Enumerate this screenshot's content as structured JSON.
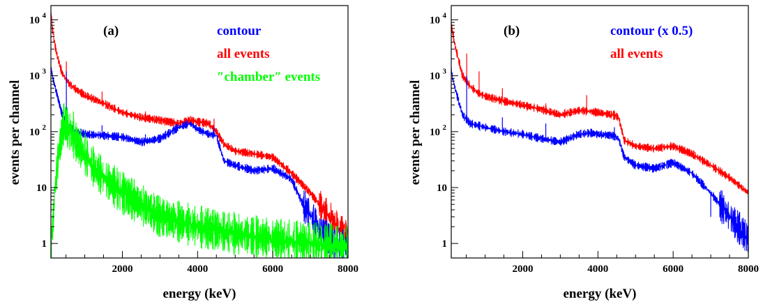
{
  "chart_data": [
    {
      "type": "line",
      "panel_label": "(a)",
      "xlabel": "energy (keV)",
      "ylabel": "events per channel",
      "xlim": [
        100,
        8000
      ],
      "ylim": [
        0.55,
        18000
      ],
      "yscale": "log",
      "x_ticks": [
        2000,
        4000,
        6000,
        8000
      ],
      "x_tick_labels": [
        "2000",
        "4000",
        "6000",
        "8000"
      ],
      "y_ticks": [
        1,
        10,
        100,
        1000,
        10000
      ],
      "y_tick_labels": [
        {
          "base": "1",
          "exp": ""
        },
        {
          "base": "10",
          "exp": ""
        },
        {
          "base": "10",
          "exp": "2"
        },
        {
          "base": "10",
          "exp": "3"
        },
        {
          "base": "10",
          "exp": "4"
        }
      ],
      "legend_placement": "top-right",
      "series": [
        {
          "name": "all events",
          "color": "#ff0000",
          "x": [
            100,
            150,
            250,
            400,
            600,
            800,
            1000,
            1500,
            2000,
            2500,
            3000,
            3500,
            3800,
            4000,
            4300,
            4500,
            4700,
            5000,
            5500,
            6000,
            6500,
            7000,
            7500,
            8000
          ],
          "y": [
            15000,
            6000,
            2500,
            1100,
            700,
            550,
            450,
            320,
            220,
            180,
            160,
            140,
            160,
            150,
            140,
            100,
            60,
            45,
            40,
            35,
            18,
            8,
            3,
            1.2
          ],
          "spikes": [
            [
              1460,
              520
            ],
            [
              2614,
              230
            ],
            [
              4438,
              170
            ],
            [
              511,
              1800
            ]
          ]
        },
        {
          "name": "contour",
          "color": "#0000ff",
          "x": [
            100,
            150,
            250,
            400,
            600,
            800,
            1000,
            1500,
            2000,
            2500,
            3000,
            3500,
            3800,
            4000,
            4300,
            4500,
            4700,
            5000,
            5500,
            6000,
            6500,
            6800,
            7200,
            7600,
            8000
          ],
          "y": [
            1500,
            900,
            500,
            200,
            110,
            100,
            90,
            85,
            80,
            65,
            75,
            120,
            140,
            110,
            90,
            85,
            30,
            25,
            20,
            22,
            14,
            5,
            2,
            1,
            0.9
          ],
          "spikes": [
            [
              511,
              1200
            ],
            [
              1460,
              130
            ],
            [
              2614,
              90
            ],
            [
              4438,
              120
            ]
          ]
        },
        {
          "name": "″chamber″ events",
          "color": "#00ff00",
          "x": [
            100,
            200,
            300,
            450,
            600,
            800,
            1000,
            1200,
            1500,
            2000,
            2500,
            3000,
            4000,
            5000,
            6000,
            7000,
            8000
          ],
          "y": [
            0.6,
            8,
            40,
            150,
            100,
            60,
            40,
            25,
            15,
            8,
            5,
            3,
            2,
            1.5,
            1.2,
            1.0,
            0.9
          ],
          "spikes": [
            [
              511,
              250
            ],
            [
              700,
              230
            ],
            [
              800,
              120
            ]
          ]
        }
      ],
      "legend": [
        {
          "text": "contour",
          "color": "#0000ff"
        },
        {
          "text": "all events",
          "color": "#ff0000"
        },
        {
          "text": "″chamber″ events",
          "color": "#00ff00"
        }
      ]
    },
    {
      "type": "line",
      "panel_label": "(b)",
      "xlabel": "energy (keV)",
      "ylabel": "events per channel",
      "xlim": [
        100,
        8000
      ],
      "ylim": [
        0.55,
        18000
      ],
      "yscale": "log",
      "x_ticks": [
        2000,
        4000,
        6000,
        8000
      ],
      "x_tick_labels": [
        "2000",
        "4000",
        "6000",
        "8000"
      ],
      "y_ticks": [
        1,
        10,
        100,
        1000,
        10000
      ],
      "y_tick_labels": [
        {
          "base": "1",
          "exp": ""
        },
        {
          "base": "10",
          "exp": ""
        },
        {
          "base": "10",
          "exp": "2"
        },
        {
          "base": "10",
          "exp": "3"
        },
        {
          "base": "10",
          "exp": "4"
        }
      ],
      "legend_placement": "top-right",
      "series": [
        {
          "name": "all events",
          "color": "#ff0000",
          "x": [
            100,
            200,
            400,
            600,
            800,
            1000,
            1500,
            2000,
            2500,
            3000,
            3500,
            3800,
            4000,
            4400,
            4550,
            4700,
            5000,
            5500,
            6000,
            6500,
            7000,
            7500,
            8000
          ],
          "y": [
            8000,
            3500,
            1000,
            650,
            500,
            430,
            350,
            300,
            250,
            200,
            240,
            230,
            220,
            200,
            180,
            70,
            55,
            50,
            55,
            40,
            25,
            15,
            8
          ],
          "spikes": [
            [
              1460,
              600
            ],
            [
              2614,
              320
            ],
            [
              3700,
              450
            ],
            [
              511,
              2500
            ],
            [
              840,
              1200
            ]
          ]
        },
        {
          "name": "contour (x 0.5)",
          "color": "#0000ff",
          "x": [
            100,
            200,
            400,
            600,
            800,
            1000,
            1500,
            2000,
            2500,
            3000,
            3500,
            3800,
            4000,
            4400,
            4550,
            4700,
            5000,
            5500,
            6000,
            6500,
            7000,
            7500,
            8000
          ],
          "y": [
            1200,
            600,
            200,
            140,
            130,
            120,
            100,
            90,
            75,
            65,
            90,
            95,
            90,
            85,
            75,
            35,
            25,
            22,
            28,
            18,
            8,
            3,
            1.2
          ],
          "spikes": [
            [
              511,
              1000
            ],
            [
              1460,
              180
            ],
            [
              2614,
              140
            ],
            [
              4438,
              120
            ],
            [
              7000,
              3
            ]
          ]
        }
      ],
      "legend": [
        {
          "text": "contour (x 0.5)",
          "color": "#0000ff"
        },
        {
          "text": "all events",
          "color": "#ff0000"
        }
      ]
    }
  ]
}
